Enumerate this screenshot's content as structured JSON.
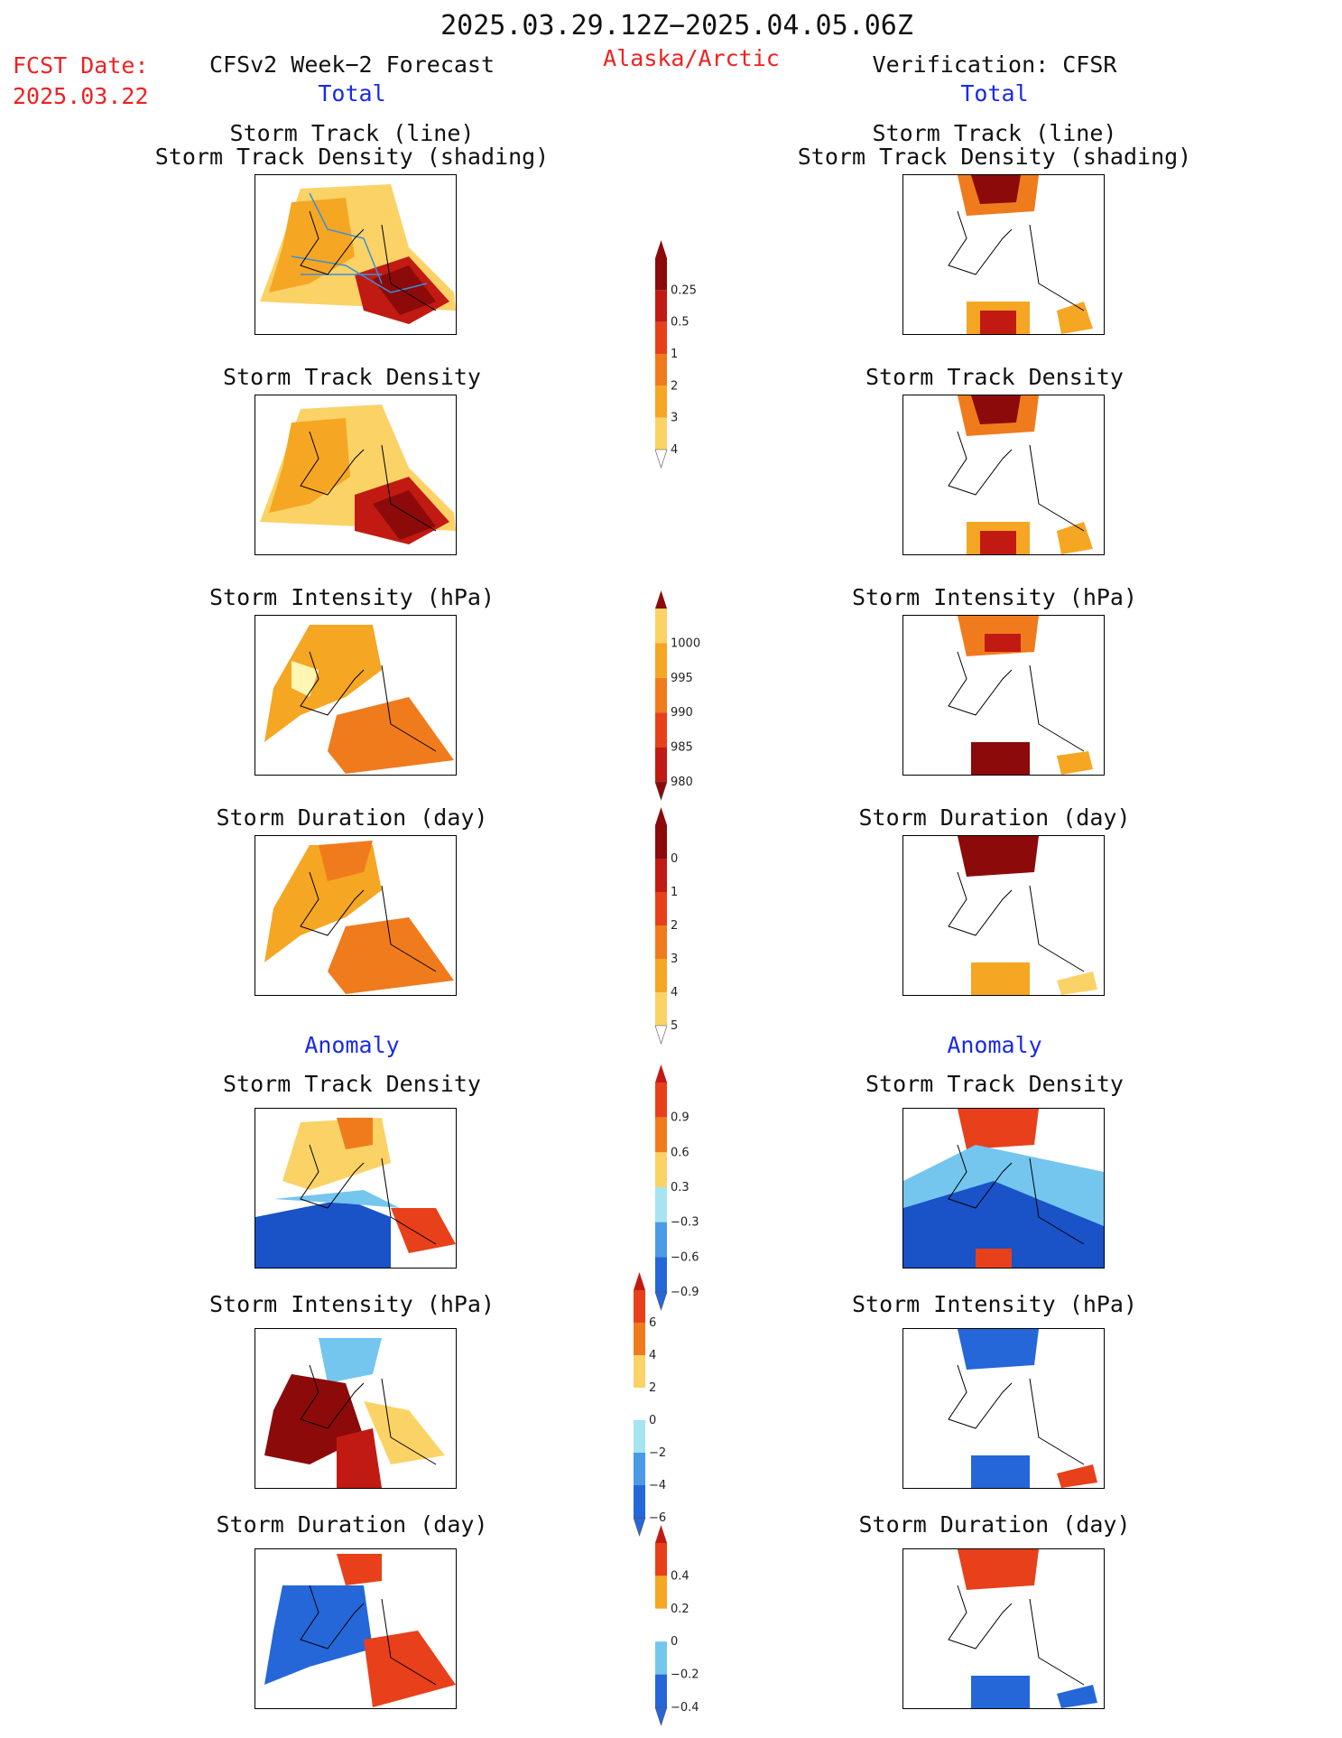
{
  "header": {
    "date_range": "2025.03.29.12Z−2025.04.05.06Z",
    "fcst_label": "FCST Date:",
    "fcst_date": "2025.03.22",
    "forecast_title": "CFSv2 Week−2 Forecast",
    "region": "Alaska/Arctic",
    "verification_title": "Verification: CFSR"
  },
  "sections": {
    "total": "Total",
    "anomaly": "Anomaly"
  },
  "panel_titles": {
    "track_line": "Storm Track (line)",
    "track_shading": "Storm Track Density (shading)",
    "density": "Storm Track Density",
    "intensity": "Storm Intensity (hPa)",
    "duration": "Storm Duration (day)"
  },
  "colors": {
    "title_red": "#ee2222",
    "section_blue": "#1a2ae6",
    "warm_scale": [
      "#fff6b3",
      "#fbd266",
      "#f5a623",
      "#f07b1c",
      "#e8401a",
      "#c11a12",
      "#8c0a0a"
    ],
    "cool_scale": [
      "#d6f2f8",
      "#a6e4f2",
      "#74c6ee",
      "#4b9ae8",
      "#2567d8",
      "#1a52c8"
    ],
    "track_line": "#3b8fd9"
  },
  "chart_data": [
    {
      "type": "heatmap",
      "name": "colorbar-track-density",
      "ticks": [
        "0.25",
        "0.5",
        "1",
        "2",
        "3",
        "4"
      ]
    },
    {
      "type": "heatmap",
      "name": "colorbar-intensity",
      "ticks": [
        "1000",
        "995",
        "990",
        "985",
        "980"
      ]
    },
    {
      "type": "heatmap",
      "name": "colorbar-duration",
      "ticks": [
        "0",
        "1",
        "2",
        "3",
        "4",
        "5"
      ]
    },
    {
      "type": "heatmap",
      "name": "colorbar-density-anomaly",
      "ticks": [
        "0.9",
        "0.6",
        "0.3",
        "−0.3",
        "−0.6",
        "−0.9"
      ]
    },
    {
      "type": "heatmap",
      "name": "colorbar-intensity-anomaly",
      "ticks": [
        "6",
        "4",
        "2",
        "0",
        "−2",
        "−4",
        "−6"
      ]
    },
    {
      "type": "heatmap",
      "name": "colorbar-duration-anomaly",
      "ticks": [
        "0.4",
        "0.2",
        "0",
        "−0.2",
        "−0.4"
      ]
    }
  ]
}
